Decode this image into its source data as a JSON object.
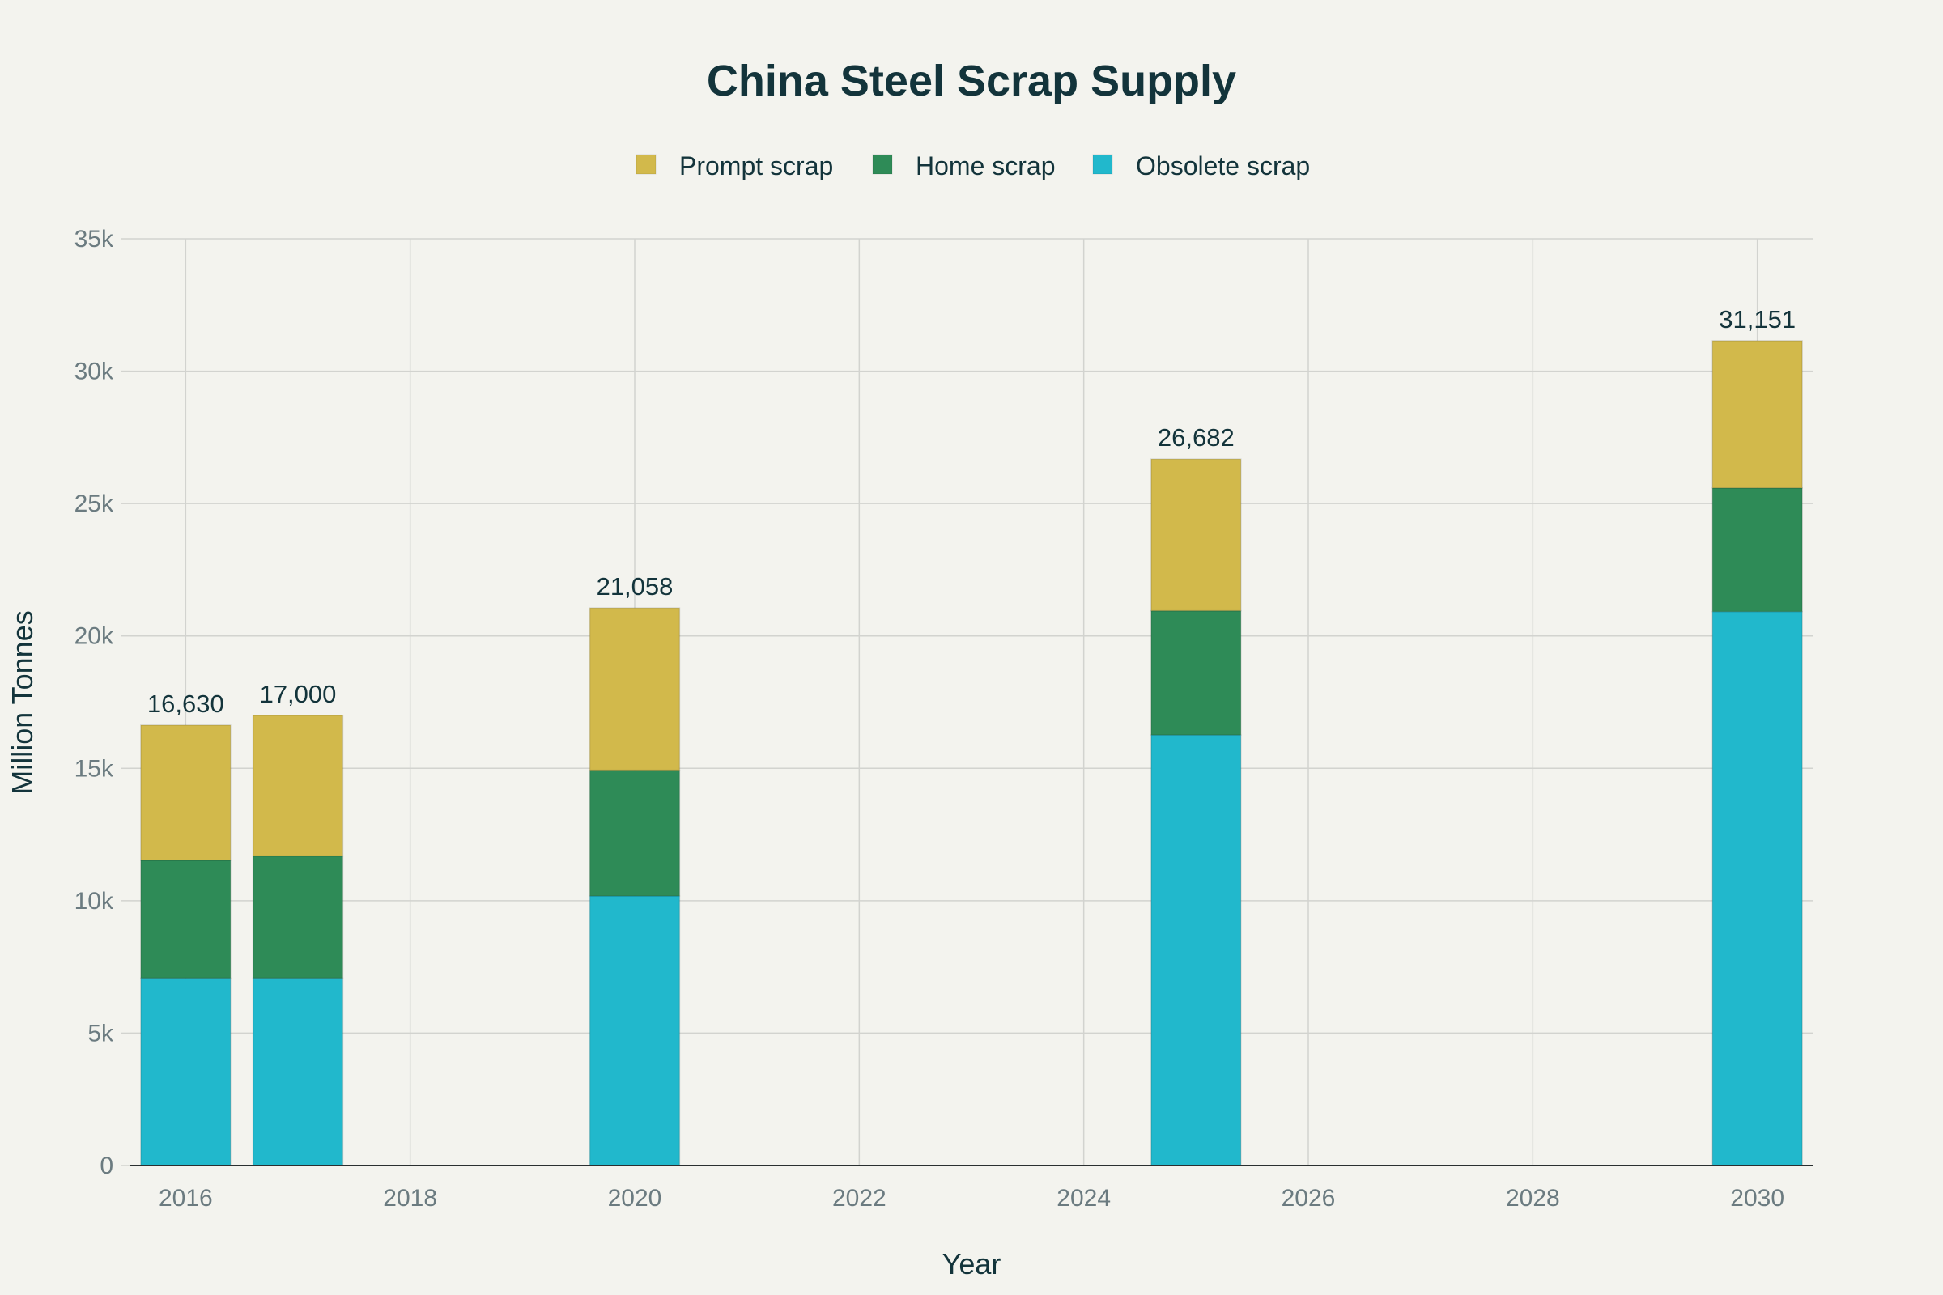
{
  "chart_data": {
    "type": "bar",
    "stacked": true,
    "title": "China Steel Scrap Supply",
    "xlabel": "Year",
    "ylabel": "Million Tonnes",
    "x": [
      2016,
      2017,
      2020,
      2025,
      2030
    ],
    "x_ticks": [
      2016,
      2018,
      2020,
      2022,
      2024,
      2026,
      2028,
      2030
    ],
    "xlim": [
      2015.5,
      2030.5
    ],
    "ylim": [
      0,
      35000
    ],
    "y_ticks": [
      0,
      5000,
      10000,
      15000,
      20000,
      25000,
      30000,
      35000
    ],
    "y_tick_labels": [
      "0",
      "5k",
      "10k",
      "15k",
      "20k",
      "25k",
      "30k",
      "35k"
    ],
    "grid": true,
    "legend_position": "top-center",
    "series": [
      {
        "name": "Obsolete scrap",
        "color": "#21b8cc",
        "values": [
          7080,
          7080,
          10180,
          16260,
          20920
        ]
      },
      {
        "name": "Home scrap",
        "color": "#2e8b57",
        "values": [
          4450,
          4610,
          4750,
          4690,
          4670
        ]
      },
      {
        "name": "Prompt scrap",
        "color": "#d2b94b",
        "values": [
          5100,
          5310,
          6128,
          5732,
          5561
        ]
      }
    ],
    "legend_order": [
      "Prompt scrap",
      "Home scrap",
      "Obsolete scrap"
    ],
    "totals": [
      16630,
      17000,
      21058,
      26682,
      31151
    ],
    "total_labels": [
      "16,630",
      "17,000",
      "21,058",
      "26,682",
      "31,151"
    ]
  }
}
